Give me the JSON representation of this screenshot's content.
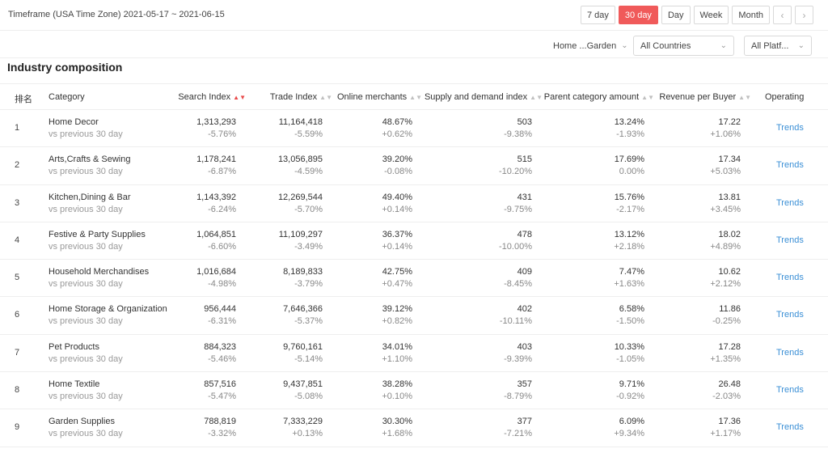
{
  "header": {
    "timeframe": "Timeframe (USA Time Zone) 2021-05-17 ~ 2021-06-15",
    "ranges": [
      "7 day",
      "30 day",
      "Day",
      "Week",
      "Month"
    ],
    "active_range": "30 day",
    "prev_icon": "chevron-left-icon",
    "next_icon": "chevron-right-icon"
  },
  "filters": {
    "category": "Home ...Garden",
    "country": "All Countries",
    "platform": "All Platf..."
  },
  "section": {
    "title": "Industry composition"
  },
  "table": {
    "columns": {
      "rank": "排名",
      "category": "Category",
      "search": "Search Index",
      "trade": "Trade Index",
      "merchants": "Online merchants",
      "supply": "Supply and demand index",
      "parent": "Parent category amount",
      "revenue": "Revenue per Buyer",
      "operating": "Operating"
    },
    "sorted_column": "search",
    "rows": [
      {
        "rank": "1",
        "category": "Home Decor",
        "sub": "vs previous 30 day",
        "search": "1,313,293",
        "search_chg": "-5.76%",
        "trade": "11,164,418",
        "trade_chg": "-5.59%",
        "merchants": "48.67%",
        "merchants_chg": "+0.62%",
        "supply": "503",
        "supply_chg": "-9.38%",
        "parent": "13.24%",
        "parent_chg": "-1.93%",
        "revenue": "17.22",
        "revenue_chg": "+1.06%",
        "action": "Trends"
      },
      {
        "rank": "2",
        "category": "Arts,Crafts & Sewing",
        "sub": "vs previous 30 day",
        "search": "1,178,241",
        "search_chg": "-6.87%",
        "trade": "13,056,895",
        "trade_chg": "-4.59%",
        "merchants": "39.20%",
        "merchants_chg": "-0.08%",
        "supply": "515",
        "supply_chg": "-10.20%",
        "parent": "17.69%",
        "parent_chg": "0.00%",
        "revenue": "17.34",
        "revenue_chg": "+5.03%",
        "action": "Trends"
      },
      {
        "rank": "3",
        "category": "Kitchen,Dining & Bar",
        "sub": "vs previous 30 day",
        "search": "1,143,392",
        "search_chg": "-6.24%",
        "trade": "12,269,544",
        "trade_chg": "-5.70%",
        "merchants": "49.40%",
        "merchants_chg": "+0.14%",
        "supply": "431",
        "supply_chg": "-9.75%",
        "parent": "15.76%",
        "parent_chg": "-2.17%",
        "revenue": "13.81",
        "revenue_chg": "+3.45%",
        "action": "Trends"
      },
      {
        "rank": "4",
        "category": "Festive & Party Supplies",
        "sub": "vs previous 30 day",
        "search": "1,064,851",
        "search_chg": "-6.60%",
        "trade": "11,109,297",
        "trade_chg": "-3.49%",
        "merchants": "36.37%",
        "merchants_chg": "+0.14%",
        "supply": "478",
        "supply_chg": "-10.00%",
        "parent": "13.12%",
        "parent_chg": "+2.18%",
        "revenue": "18.02",
        "revenue_chg": "+4.89%",
        "action": "Trends"
      },
      {
        "rank": "5",
        "category": "Household Merchandises",
        "sub": "vs previous 30 day",
        "search": "1,016,684",
        "search_chg": "-4.98%",
        "trade": "8,189,833",
        "trade_chg": "-3.79%",
        "merchants": "42.75%",
        "merchants_chg": "+0.47%",
        "supply": "409",
        "supply_chg": "-8.45%",
        "parent": "7.47%",
        "parent_chg": "+1.63%",
        "revenue": "10.62",
        "revenue_chg": "+2.12%",
        "action": "Trends"
      },
      {
        "rank": "6",
        "category": "Home Storage & Organization",
        "sub": "vs previous 30 day",
        "search": "956,444",
        "search_chg": "-6.31%",
        "trade": "7,646,366",
        "trade_chg": "-5.37%",
        "merchants": "39.12%",
        "merchants_chg": "+0.82%",
        "supply": "402",
        "supply_chg": "-10.11%",
        "parent": "6.58%",
        "parent_chg": "-1.50%",
        "revenue": "11.86",
        "revenue_chg": "-0.25%",
        "action": "Trends"
      },
      {
        "rank": "7",
        "category": "Pet Products",
        "sub": "vs previous 30 day",
        "search": "884,323",
        "search_chg": "-5.46%",
        "trade": "9,760,161",
        "trade_chg": "-5.14%",
        "merchants": "34.01%",
        "merchants_chg": "+1.10%",
        "supply": "403",
        "supply_chg": "-9.39%",
        "parent": "10.33%",
        "parent_chg": "-1.05%",
        "revenue": "17.28",
        "revenue_chg": "+1.35%",
        "action": "Trends"
      },
      {
        "rank": "8",
        "category": "Home Textile",
        "sub": "vs previous 30 day",
        "search": "857,516",
        "search_chg": "-5.47%",
        "trade": "9,437,851",
        "trade_chg": "-5.08%",
        "merchants": "38.28%",
        "merchants_chg": "+0.10%",
        "supply": "357",
        "supply_chg": "-8.79%",
        "parent": "9.71%",
        "parent_chg": "-0.92%",
        "revenue": "26.48",
        "revenue_chg": "-2.03%",
        "action": "Trends"
      },
      {
        "rank": "9",
        "category": "Garden Supplies",
        "sub": "vs previous 30 day",
        "search": "788,819",
        "search_chg": "-3.32%",
        "trade": "7,333,229",
        "trade_chg": "+0.13%",
        "merchants": "30.30%",
        "merchants_chg": "+1.68%",
        "supply": "377",
        "supply_chg": "-7.21%",
        "parent": "6.09%",
        "parent_chg": "+9.34%",
        "revenue": "17.36",
        "revenue_chg": "+1.17%",
        "action": "Trends"
      }
    ]
  },
  "colors": {
    "accent": "#f05a5a",
    "link": "#3a8fd6",
    "muted": "#999999",
    "border": "#eeeeee"
  }
}
